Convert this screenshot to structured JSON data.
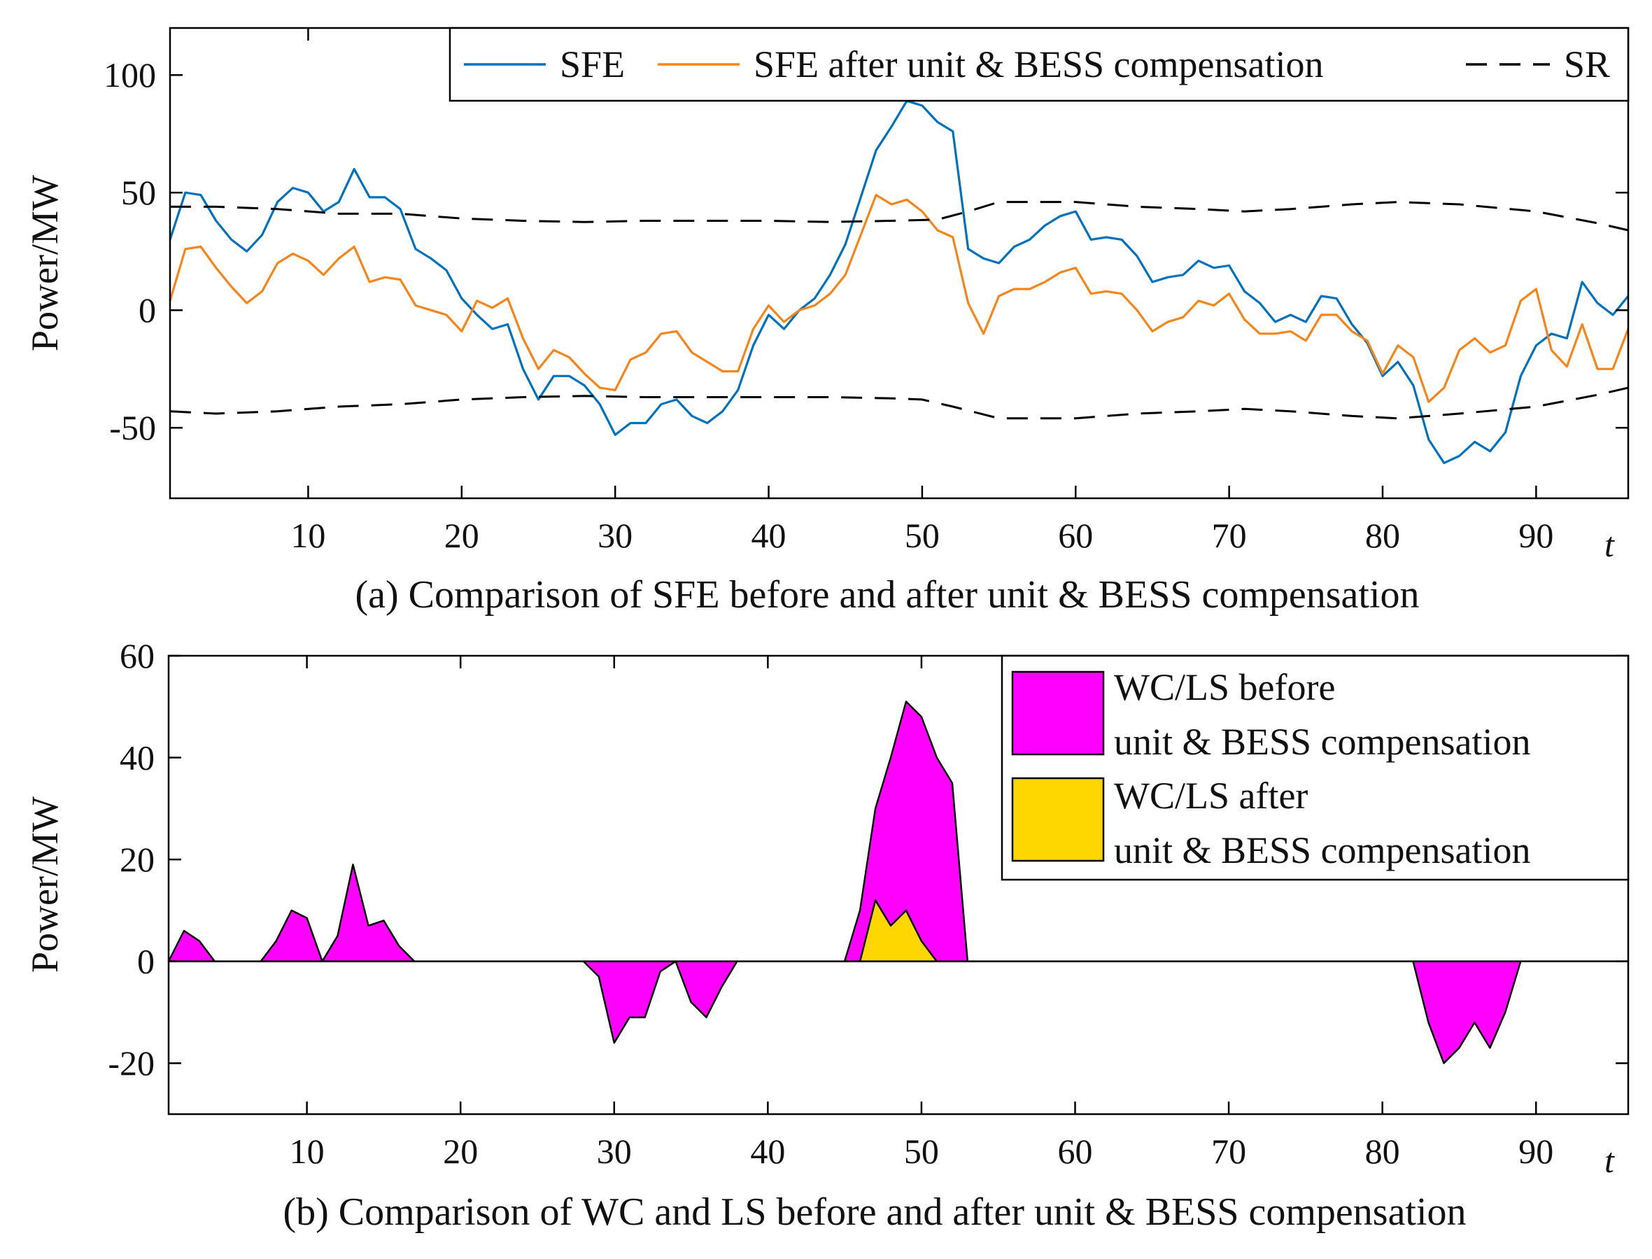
{
  "chart_data": [
    {
      "type": "line",
      "title": "",
      "caption": "(a) Comparison of SFE before and after unit & BESS compensation",
      "xlabel": "t",
      "ylabel": "Power/MW",
      "xlim": [
        1,
        96
      ],
      "ylim": [
        -80,
        120
      ],
      "xticks": [
        10,
        20,
        30,
        40,
        50,
        60,
        70,
        80,
        90
      ],
      "yticks": [
        -50,
        0,
        50,
        100
      ],
      "legend_position": "top-right",
      "colors": {
        "sfe": "#0072BD",
        "sfe_after": "#F58518",
        "sr": "#000000"
      },
      "legend": [
        "SFE",
        "SFE after unit & BESS compensation",
        "SR"
      ],
      "x": [
        1,
        2,
        3,
        4,
        5,
        6,
        7,
        8,
        9,
        10,
        11,
        12,
        13,
        14,
        15,
        16,
        17,
        18,
        19,
        20,
        21,
        22,
        23,
        24,
        25,
        26,
        27,
        28,
        29,
        30,
        31,
        32,
        33,
        34,
        35,
        36,
        37,
        38,
        39,
        40,
        41,
        42,
        43,
        44,
        45,
        46,
        47,
        48,
        49,
        50,
        51,
        52,
        53,
        54,
        55,
        56,
        57,
        58,
        59,
        60,
        61,
        62,
        63,
        64,
        65,
        66,
        67,
        68,
        69,
        70,
        71,
        72,
        73,
        74,
        75,
        76,
        77,
        78,
        79,
        80,
        81,
        82,
        83,
        84,
        85,
        86,
        87,
        88,
        89,
        90,
        91,
        92,
        93,
        94,
        95,
        96
      ],
      "series": [
        {
          "name": "SFE",
          "values": [
            30,
            50,
            49,
            38,
            30,
            25,
            32,
            46,
            52,
            50,
            42,
            46,
            60,
            48,
            48,
            43,
            26,
            22,
            17,
            5,
            -2,
            -8,
            -6,
            -25,
            -38,
            -28,
            -28,
            -32,
            -40,
            -53,
            -48,
            -48,
            -40,
            -38,
            -45,
            -48,
            -43,
            -34,
            -15,
            -2,
            -8,
            0,
            5,
            15,
            28,
            48,
            68,
            78,
            89,
            87,
            80,
            76,
            26,
            22,
            20,
            27,
            30,
            36,
            40,
            42,
            30,
            31,
            30,
            23,
            12,
            14,
            15,
            21,
            18,
            19,
            8,
            3,
            -5,
            -2,
            -5,
            6,
            5,
            -6,
            -14,
            -28,
            -22,
            -32,
            -55,
            -65,
            -62,
            -56,
            -60,
            -52,
            -28,
            -15,
            -10,
            -12,
            12,
            3,
            -2,
            6
          ]
        },
        {
          "name": "SFE after unit & BESS compensation",
          "values": [
            4,
            26,
            27,
            18,
            10,
            3,
            8,
            20,
            24,
            21,
            15,
            22,
            27,
            12,
            14,
            13,
            2,
            0,
            -2,
            -9,
            4,
            1,
            5,
            -12,
            -25,
            -17,
            -20,
            -27,
            -33,
            -34,
            -21,
            -18,
            -10,
            -9,
            -18,
            -22,
            -26,
            -26,
            -8,
            2,
            -5,
            0,
            2,
            7,
            15,
            32,
            49,
            45,
            47,
            42,
            34,
            31,
            3,
            -10,
            6,
            9,
            9,
            12,
            16,
            18,
            7,
            8,
            7,
            0,
            -9,
            -5,
            -3,
            4,
            2,
            7,
            -4,
            -10,
            -10,
            -9,
            -13,
            -2,
            -2,
            -9,
            -13,
            -27,
            -15,
            -20,
            -39,
            -33,
            -17,
            -12,
            -18,
            -15,
            4,
            9,
            -17,
            -24,
            -6,
            -25,
            -25,
            -8
          ]
        },
        {
          "name": "SR",
          "dashed": true,
          "values": [
            [
              1,
              44
            ],
            [
              4,
              44
            ],
            [
              8,
              43
            ],
            [
              12,
              41
            ],
            [
              16,
              41
            ],
            [
              20,
              39
            ],
            [
              24,
              38
            ],
            [
              28,
              37.5
            ],
            [
              32,
              38
            ],
            [
              36,
              38
            ],
            [
              40,
              38
            ],
            [
              44,
              37.5
            ],
            [
              48,
              38
            ],
            [
              51,
              38.5
            ],
            [
              53,
              42
            ],
            [
              55,
              46
            ],
            [
              60,
              46
            ],
            [
              64,
              44
            ],
            [
              68,
              43
            ],
            [
              71,
              42
            ],
            [
              74,
              43
            ],
            [
              78,
              45
            ],
            [
              81,
              46
            ],
            [
              85,
              45
            ],
            [
              90,
              42
            ],
            [
              94,
              37
            ],
            [
              96,
              34
            ]
          ]
        },
        {
          "name": "SR",
          "dashed": true,
          "values": [
            [
              1,
              -43
            ],
            [
              4,
              -44
            ],
            [
              8,
              -43
            ],
            [
              12,
              -41
            ],
            [
              16,
              -40
            ],
            [
              20,
              -38
            ],
            [
              24,
              -37
            ],
            [
              28,
              -36.5
            ],
            [
              32,
              -37
            ],
            [
              36,
              -37
            ],
            [
              40,
              -37
            ],
            [
              44,
              -37
            ],
            [
              48,
              -37.5
            ],
            [
              50,
              -38
            ],
            [
              52,
              -41
            ],
            [
              55,
              -46
            ],
            [
              60,
              -46
            ],
            [
              64,
              -44
            ],
            [
              68,
              -43
            ],
            [
              71,
              -42
            ],
            [
              74,
              -43
            ],
            [
              78,
              -45
            ],
            [
              81,
              -46
            ],
            [
              85,
              -44
            ],
            [
              90,
              -41
            ],
            [
              94,
              -36
            ],
            [
              96,
              -33
            ]
          ]
        }
      ]
    },
    {
      "type": "area",
      "title": "",
      "caption": "(b) Comparison of WC and LS before and after unit & BESS compensation",
      "xlabel": "t",
      "ylabel": "Power/MW",
      "xlim": [
        1,
        96
      ],
      "ylim": [
        -30,
        60
      ],
      "xticks": [
        10,
        20,
        30,
        40,
        50,
        60,
        70,
        80,
        90
      ],
      "yticks": [
        -20,
        0,
        20,
        40,
        60
      ],
      "legend_position": "top-right",
      "colors": {
        "before": "#FF00FF",
        "after": "#FFD700"
      },
      "legend": [
        [
          "WC/LS before",
          "unit & BESS compensation"
        ],
        [
          "WC/LS after",
          "unit & BESS compensation"
        ]
      ],
      "series": [
        {
          "name": "WC/LS before unit & BESS compensation",
          "values": [
            [
              1,
              0
            ],
            [
              2,
              6
            ],
            [
              3,
              4
            ],
            [
              4,
              0
            ],
            [
              7,
              0
            ],
            [
              8,
              4
            ],
            [
              9,
              10
            ],
            [
              10,
              8.5
            ],
            [
              11,
              0
            ],
            [
              12,
              5
            ],
            [
              13,
              19
            ],
            [
              14,
              7
            ],
            [
              15,
              8
            ],
            [
              16,
              3
            ],
            [
              17,
              0
            ],
            [
              28,
              0
            ],
            [
              29,
              -3
            ],
            [
              30,
              -16
            ],
            [
              31,
              -11
            ],
            [
              32,
              -11
            ],
            [
              33,
              -2
            ],
            [
              34,
              0
            ],
            [
              35,
              -8
            ],
            [
              36,
              -11
            ],
            [
              37,
              -5
            ],
            [
              38,
              0
            ],
            [
              45,
              0
            ],
            [
              46,
              10
            ],
            [
              47,
              30
            ],
            [
              48,
              40
            ],
            [
              49,
              51
            ],
            [
              50,
              48
            ],
            [
              51,
              40
            ],
            [
              52,
              35
            ],
            [
              53,
              0
            ],
            [
              82,
              0
            ],
            [
              83,
              -12
            ],
            [
              84,
              -20
            ],
            [
              85,
              -17
            ],
            [
              86,
              -12
            ],
            [
              87,
              -17
            ],
            [
              88,
              -10
            ],
            [
              89,
              0
            ]
          ]
        },
        {
          "name": "WC/LS after unit & BESS compensation",
          "values": [
            [
              46,
              0
            ],
            [
              47,
              12
            ],
            [
              48,
              7
            ],
            [
              49,
              10
            ],
            [
              50,
              4
            ],
            [
              51,
              0
            ]
          ]
        }
      ]
    }
  ]
}
